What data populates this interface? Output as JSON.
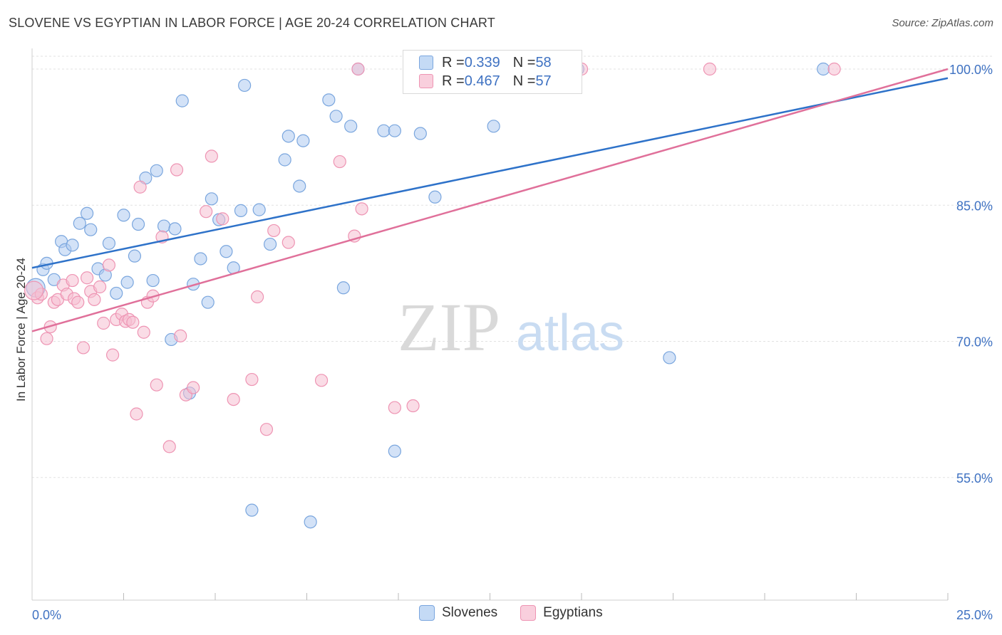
{
  "header": {
    "title": "SLOVENE VS EGYPTIAN IN LABOR FORCE | AGE 20-24 CORRELATION CHART",
    "source": "Source: ZipAtlas.com"
  },
  "legend": {
    "rows": [
      {
        "r_label": "R = ",
        "r_value": "0.339",
        "n_label": "N = ",
        "n_value": "58"
      },
      {
        "r_label": "R = ",
        "r_value": "0.467",
        "n_label": "N = ",
        "n_value": "57"
      }
    ]
  },
  "bottom_legend": [
    "Slovenes",
    "Egyptians"
  ],
  "watermark": {
    "zip": "ZIP",
    "atlas": "atlas"
  },
  "colors": {
    "blue_fill": "#aecbf0",
    "blue_stroke": "#7aa6de",
    "blue_line": "#2e72c9",
    "pink_fill": "#f6bfd1",
    "pink_stroke": "#ee94b3",
    "pink_line": "#e0709a",
    "tick_text": "#3f72c2"
  },
  "chart_data": {
    "type": "scatter",
    "title": "SLOVENE VS EGYPTIAN IN LABOR FORCE | AGE 20-24 CORRELATION CHART",
    "xlabel": "",
    "ylabel": "In Labor Force | Age 20-24",
    "xlim": [
      0,
      25
    ],
    "ylim": [
      40,
      102
    ],
    "x_ticks": [
      "0.0%",
      "25.0%"
    ],
    "y_ticks": [
      {
        "value": 55,
        "label": "55.0%"
      },
      {
        "value": 70,
        "label": "70.0%"
      },
      {
        "value": 85,
        "label": "85.0%"
      },
      {
        "value": 100,
        "label": "100.0%"
      }
    ],
    "grid": true,
    "series": [
      {
        "name": "Slovenes",
        "color": "blue",
        "trend": {
          "x": [
            0,
            25
          ],
          "y": [
            78.1,
            99.0
          ]
        },
        "points": [
          [
            0.1,
            75.9
          ],
          [
            0.3,
            77.9
          ],
          [
            0.4,
            78.6
          ],
          [
            0.6,
            76.8
          ],
          [
            0.8,
            81.0
          ],
          [
            0.9,
            80.1
          ],
          [
            1.1,
            80.6
          ],
          [
            1.3,
            83.0
          ],
          [
            1.5,
            84.1
          ],
          [
            1.6,
            82.3
          ],
          [
            1.8,
            78.0
          ],
          [
            2.0,
            77.3
          ],
          [
            2.1,
            80.8
          ],
          [
            2.3,
            75.3
          ],
          [
            2.5,
            83.9
          ],
          [
            2.6,
            76.5
          ],
          [
            2.8,
            79.4
          ],
          [
            2.9,
            82.9
          ],
          [
            3.1,
            88.0
          ],
          [
            3.3,
            76.7
          ],
          [
            3.4,
            88.8
          ],
          [
            3.6,
            82.7
          ],
          [
            3.8,
            70.2
          ],
          [
            3.9,
            82.4
          ],
          [
            4.1,
            96.5
          ],
          [
            4.3,
            64.3
          ],
          [
            4.4,
            76.3
          ],
          [
            4.6,
            79.1
          ],
          [
            4.8,
            74.3
          ],
          [
            4.9,
            85.7
          ],
          [
            5.1,
            83.4
          ],
          [
            5.3,
            79.9
          ],
          [
            5.5,
            78.1
          ],
          [
            5.7,
            84.4
          ],
          [
            5.8,
            98.2
          ],
          [
            6.0,
            51.4
          ],
          [
            6.2,
            84.5
          ],
          [
            6.5,
            80.7
          ],
          [
            6.9,
            90.0
          ],
          [
            7.0,
            92.6
          ],
          [
            7.3,
            87.1
          ],
          [
            7.4,
            92.1
          ],
          [
            7.6,
            50.1
          ],
          [
            8.1,
            96.6
          ],
          [
            8.3,
            94.8
          ],
          [
            8.5,
            75.9
          ],
          [
            8.7,
            93.7
          ],
          [
            8.9,
            100.0
          ],
          [
            9.6,
            93.2
          ],
          [
            9.9,
            93.2
          ],
          [
            9.9,
            57.9
          ],
          [
            10.6,
            92.9
          ],
          [
            11.0,
            85.9
          ],
          [
            12.1,
            100.0
          ],
          [
            12.6,
            93.7
          ],
          [
            14.9,
            100.0
          ],
          [
            17.4,
            68.2
          ],
          [
            21.6,
            100.0
          ]
        ]
      },
      {
        "name": "Egyptians",
        "color": "pink",
        "trend": {
          "x": [
            0,
            25
          ],
          "y": [
            71.1,
            100.0
          ]
        },
        "points": [
          [
            0.15,
            74.8
          ],
          [
            0.25,
            75.2
          ],
          [
            0.4,
            70.3
          ],
          [
            0.5,
            71.6
          ],
          [
            0.6,
            74.3
          ],
          [
            0.7,
            74.6
          ],
          [
            0.85,
            76.2
          ],
          [
            0.95,
            75.2
          ],
          [
            1.1,
            76.7
          ],
          [
            1.15,
            74.7
          ],
          [
            1.25,
            74.3
          ],
          [
            1.4,
            69.3
          ],
          [
            1.5,
            77.0
          ],
          [
            1.6,
            75.5
          ],
          [
            1.7,
            74.6
          ],
          [
            1.85,
            76.0
          ],
          [
            1.95,
            72.0
          ],
          [
            2.1,
            78.4
          ],
          [
            2.2,
            68.5
          ],
          [
            2.3,
            72.4
          ],
          [
            2.45,
            73.0
          ],
          [
            2.55,
            72.2
          ],
          [
            2.65,
            72.4
          ],
          [
            2.75,
            72.1
          ],
          [
            2.85,
            62.0
          ],
          [
            2.95,
            87.0
          ],
          [
            3.05,
            71.0
          ],
          [
            3.15,
            74.3
          ],
          [
            3.3,
            75.0
          ],
          [
            3.4,
            65.2
          ],
          [
            3.55,
            81.5
          ],
          [
            3.75,
            58.4
          ],
          [
            3.95,
            88.9
          ],
          [
            4.05,
            70.6
          ],
          [
            4.2,
            64.1
          ],
          [
            4.4,
            64.9
          ],
          [
            4.75,
            84.3
          ],
          [
            4.9,
            90.4
          ],
          [
            5.2,
            83.5
          ],
          [
            5.5,
            63.6
          ],
          [
            6.0,
            65.8
          ],
          [
            6.15,
            74.9
          ],
          [
            6.4,
            60.3
          ],
          [
            6.6,
            82.2
          ],
          [
            7.0,
            80.9
          ],
          [
            7.9,
            65.7
          ],
          [
            8.4,
            89.8
          ],
          [
            8.8,
            81.6
          ],
          [
            8.9,
            100.0
          ],
          [
            9.0,
            84.6
          ],
          [
            9.9,
            62.7
          ],
          [
            10.4,
            62.9
          ],
          [
            12.8,
            100.0
          ],
          [
            15.0,
            100.0
          ],
          [
            18.5,
            100.0
          ],
          [
            21.9,
            100.0
          ],
          [
            0.05,
            75.6
          ]
        ]
      }
    ]
  }
}
